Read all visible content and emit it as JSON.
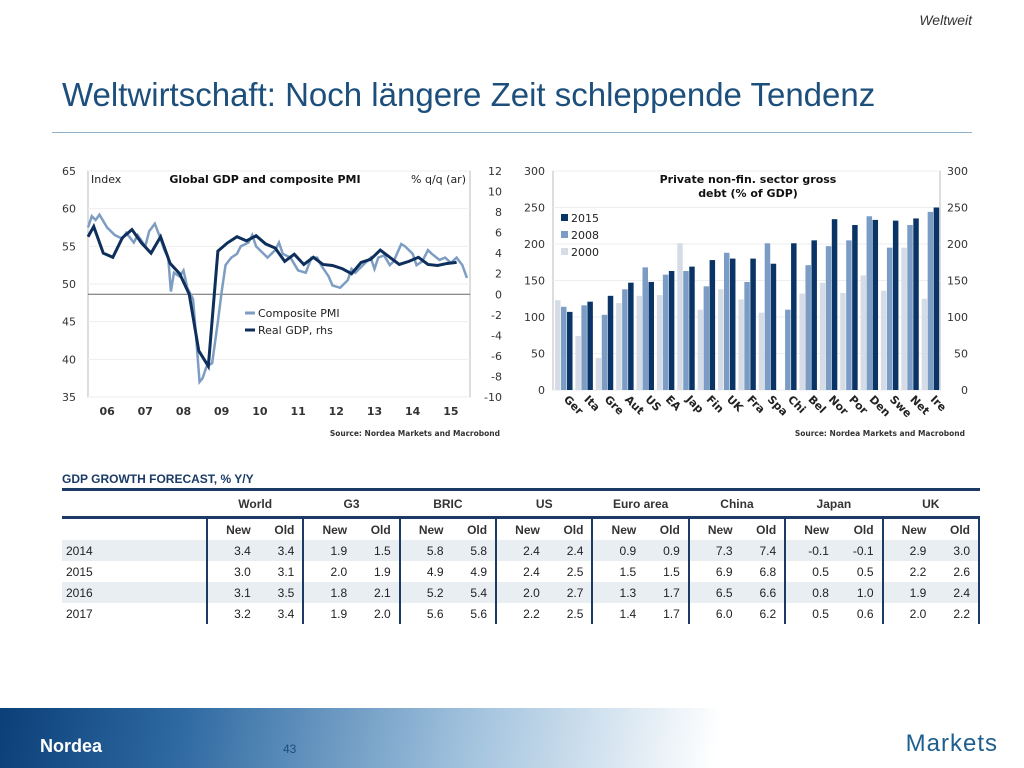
{
  "header": {
    "section_tag": "Weltweit",
    "title": "Weltwirtschaft: Noch längere Zeit schleppende Tendenz"
  },
  "chart_data": [
    {
      "type": "line",
      "title": "Global GDP and composite PMI",
      "ylabel_left": "Index",
      "ylabel_right": "% q/q (ar)",
      "ylim_left": [
        35,
        65
      ],
      "ylim_right": [
        -10,
        12
      ],
      "yticks_left": [
        "65",
        "60",
        "55",
        "50",
        "45",
        "40",
        "35"
      ],
      "yticks_right": [
        "12",
        "10",
        "8",
        "6",
        "4",
        "2",
        "0",
        "-2",
        "-4",
        "-6",
        "-8",
        "-10"
      ],
      "xticks": [
        "06",
        "07",
        "08",
        "09",
        "10",
        "11",
        "12",
        "13",
        "14",
        "15"
      ],
      "xlim": [
        2006,
        2016
      ],
      "legend_position": "center",
      "source": "Source: Nordea Markets and Macrobond",
      "series": [
        {
          "name": "Composite PMI",
          "axis": "left",
          "color": "#7e9dc2",
          "x": [
            2006.0,
            2006.1,
            2006.2,
            2006.3,
            2006.5,
            2006.7,
            2006.9,
            2007.0,
            2007.2,
            2007.3,
            2007.5,
            2007.6,
            2007.75,
            2007.9,
            2008.0,
            2008.1,
            2008.17,
            2008.25,
            2008.4,
            2008.5,
            2008.6,
            2008.75,
            2008.83,
            2008.92,
            2009.0,
            2009.1,
            2009.25,
            2009.4,
            2009.5,
            2009.6,
            2009.75,
            2009.9,
            2010.0,
            2010.2,
            2010.3,
            2010.4,
            2010.5,
            2010.7,
            2010.9,
            2011.0,
            2011.1,
            2011.3,
            2011.5,
            2011.7,
            2011.85,
            2012.0,
            2012.1,
            2012.3,
            2012.4,
            2012.6,
            2012.8,
            2012.9,
            2013.0,
            2013.2,
            2013.4,
            2013.5,
            2013.6,
            2013.75,
            2013.9,
            2014.0,
            2014.2,
            2014.3,
            2014.5,
            2014.6,
            2014.75,
            2014.9,
            2015.0,
            2015.2,
            2015.35,
            2015.5,
            2015.65,
            2015.8,
            2015.92
          ],
          "values": [
            57.5,
            59,
            58.5,
            59.2,
            57.5,
            56.5,
            56,
            56.8,
            55.5,
            56.5,
            55,
            57,
            58,
            56,
            54.5,
            53.5,
            49,
            51.5,
            51,
            51.8,
            49.5,
            48,
            43,
            37,
            37.5,
            39,
            39.5,
            45,
            49,
            52.5,
            53.5,
            54,
            55,
            55.5,
            56.5,
            55,
            54.5,
            53.5,
            54.5,
            55.5,
            54,
            53.5,
            51.8,
            51.5,
            53.5,
            53.5,
            52.5,
            51,
            49.8,
            49.5,
            50.5,
            52,
            51.5,
            52.5,
            53.5,
            52,
            53.5,
            53.8,
            52.5,
            53,
            55.3,
            55,
            54,
            52.5,
            53,
            54.5,
            54,
            53.2,
            53.5,
            52.8,
            53.5,
            52.5,
            50.8
          ]
        },
        {
          "name": "Real GDP, rhs",
          "axis": "right",
          "color": "#0e2f5c",
          "x": [
            2006.0,
            2006.15,
            2006.4,
            2006.65,
            2006.9,
            2007.15,
            2007.4,
            2007.65,
            2007.9,
            2008.15,
            2008.4,
            2008.65,
            2008.9,
            2009.15,
            2009.4,
            2009.65,
            2009.9,
            2010.15,
            2010.4,
            2010.65,
            2010.9,
            2011.15,
            2011.4,
            2011.65,
            2011.9,
            2012.15,
            2012.4,
            2012.65,
            2012.9,
            2013.15,
            2013.4,
            2013.65,
            2013.9,
            2014.15,
            2014.4,
            2014.65,
            2014.9,
            2015.15,
            2015.4,
            2015.65
          ],
          "values": [
            5.6,
            6.6,
            4,
            3.6,
            5.5,
            6.3,
            5,
            4,
            5.6,
            3,
            2,
            0,
            -5.5,
            -7,
            4.2,
            5,
            5.6,
            5.2,
            5.7,
            4.9,
            4.5,
            3.2,
            3.9,
            2.9,
            3.6,
            2.9,
            2.8,
            2.5,
            2,
            3.1,
            3.4,
            4.3,
            3.6,
            2.9,
            3.2,
            3.6,
            2.9,
            2.8,
            3,
            3.1
          ]
        }
      ]
    },
    {
      "type": "bar",
      "title": "Private non-fin. sector gross debt (% of GDP)",
      "ylim": [
        0,
        300
      ],
      "yticks": [
        "300",
        "250",
        "200",
        "150",
        "100",
        "50",
        "0"
      ],
      "legend_position": "top-left",
      "source": "Source: Nordea Markets and Macrobond",
      "categories": [
        "Ger",
        "Ita",
        "Gre",
        "Aut",
        "US",
        "EA",
        "Jap",
        "Fin",
        "UK",
        "Fra",
        "Spa",
        "Chi",
        "Bel",
        "Nor",
        "Por",
        "Den",
        "Swe",
        "Net",
        "Ire"
      ],
      "series": [
        {
          "name": "2000",
          "color": "#d5dce6",
          "values": [
            123,
            74,
            44,
            119,
            129,
            130,
            201,
            110,
            138,
            124,
            106,
            null,
            132,
            147,
            133,
            157,
            136,
            195,
            125
          ]
        },
        {
          "name": "2008",
          "color": "#7b9cc4",
          "values": [
            114,
            116,
            103,
            138,
            168,
            158,
            163,
            142,
            188,
            148,
            201,
            110,
            171,
            197,
            205,
            238,
            195,
            226,
            244
          ]
        },
        {
          "name": "2015",
          "color": "#0b3466",
          "values": [
            107,
            121,
            129,
            147,
            148,
            163,
            169,
            178,
            180,
            180,
            173,
            201,
            205,
            234,
            226,
            233,
            232,
            235,
            250
          ]
        }
      ]
    }
  ],
  "table": {
    "title": "GDP GROWTH FORECAST, % Y/Y",
    "groups": [
      "World",
      "G3",
      "BRIC",
      "US",
      "Euro area",
      "China",
      "Japan",
      "UK"
    ],
    "sub": [
      "New",
      "Old"
    ],
    "rows": [
      {
        "year": "2014",
        "v": [
          "3.4",
          "3.4",
          "1.9",
          "1.5",
          "5.8",
          "5.8",
          "2.4",
          "2.4",
          "0.9",
          "0.9",
          "7.3",
          "7.4",
          "-0.1",
          "-0.1",
          "2.9",
          "3.0"
        ]
      },
      {
        "year": "2015",
        "v": [
          "3.0",
          "3.1",
          "2.0",
          "1.9",
          "4.9",
          "4.9",
          "2.4",
          "2.5",
          "1.5",
          "1.5",
          "6.9",
          "6.8",
          "0.5",
          "0.5",
          "2.2",
          "2.6"
        ]
      },
      {
        "year": "2016",
        "v": [
          "3.1",
          "3.5",
          "1.8",
          "2.1",
          "5.2",
          "5.4",
          "2.0",
          "2.7",
          "1.3",
          "1.7",
          "6.5",
          "6.6",
          "0.8",
          "1.0",
          "1.9",
          "2.4"
        ]
      },
      {
        "year": "2017",
        "v": [
          "3.2",
          "3.4",
          "1.9",
          "2.0",
          "5.6",
          "5.6",
          "2.2",
          "2.5",
          "1.4",
          "1.7",
          "6.0",
          "6.2",
          "0.5",
          "0.6",
          "2.0",
          "2.2"
        ]
      }
    ]
  },
  "footer": {
    "brand": "Nordea",
    "page": "43",
    "division": "Markets"
  }
}
